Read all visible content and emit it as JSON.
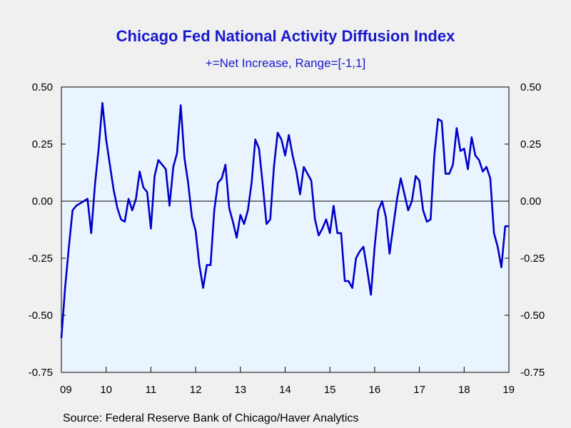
{
  "chart_data": {
    "type": "line",
    "title": "Chicago Fed National Activity Diffusion Index",
    "subtitle": "+=Net Increase, Range=[-1,1]",
    "source": "Source:  Federal Reserve Bank of Chicago/Haver Analytics",
    "ylim": [
      -0.75,
      0.5
    ],
    "y_ticks": [
      0.5,
      0.25,
      0.0,
      -0.25,
      -0.5,
      -0.75
    ],
    "y_tick_labels": [
      "0.50",
      "0.25",
      "0.00",
      "-0.25",
      "-0.50",
      "-0.75"
    ],
    "xlim": [
      2009.0,
      2019.0
    ],
    "x_tick_labels": [
      "09",
      "10",
      "11",
      "12",
      "13",
      "14",
      "15",
      "16",
      "17",
      "18",
      "19"
    ],
    "zero_line": true,
    "grid": false,
    "colors": {
      "line": "#0000c8",
      "plot_bg": "#eaf4ff",
      "title": "#1a1acd"
    },
    "series": [
      {
        "x": [
          2009.0,
          2009.083,
          2009.167,
          2009.25,
          2009.333,
          2009.417,
          2009.5,
          2009.583,
          2009.667,
          2009.75,
          2009.833,
          2009.917,
          2010.0,
          2010.083,
          2010.167,
          2010.25,
          2010.333,
          2010.417,
          2010.5,
          2010.583,
          2010.667,
          2010.75,
          2010.833,
          2010.917,
          2011.0,
          2011.083,
          2011.167,
          2011.25,
          2011.333,
          2011.417,
          2011.5,
          2011.583,
          2011.667,
          2011.75,
          2011.833,
          2011.917,
          2012.0,
          2012.083,
          2012.167,
          2012.25,
          2012.333,
          2012.417,
          2012.5,
          2012.583,
          2012.667,
          2012.75,
          2012.833,
          2012.917,
          2013.0,
          2013.083,
          2013.167,
          2013.25,
          2013.333,
          2013.417,
          2013.5,
          2013.583,
          2013.667,
          2013.75,
          2013.833,
          2013.917,
          2014.0,
          2014.083,
          2014.167,
          2014.25,
          2014.333,
          2014.417,
          2014.5,
          2014.583,
          2014.667,
          2014.75,
          2014.833,
          2014.917,
          2015.0,
          2015.083,
          2015.167,
          2015.25,
          2015.333,
          2015.417,
          2015.5,
          2015.583,
          2015.667,
          2015.75,
          2015.833,
          2015.917,
          2016.0,
          2016.083,
          2016.167,
          2016.25,
          2016.333,
          2016.417,
          2016.5,
          2016.583,
          2016.667,
          2016.75,
          2016.833,
          2016.917,
          2017.0,
          2017.083,
          2017.167,
          2017.25,
          2017.333,
          2017.417,
          2017.5,
          2017.583,
          2017.667,
          2017.75,
          2017.833,
          2017.917,
          2018.0,
          2018.083,
          2018.167,
          2018.25,
          2018.333,
          2018.417,
          2018.5,
          2018.583,
          2018.667,
          2018.75,
          2018.833,
          2018.917,
          2019.0
        ],
        "values": [
          -0.6,
          -0.38,
          -0.2,
          -0.04,
          -0.02,
          -0.01,
          0.0,
          0.01,
          -0.14,
          0.07,
          0.23,
          0.43,
          0.27,
          0.16,
          0.05,
          -0.03,
          -0.08,
          -0.09,
          0.01,
          -0.04,
          0.01,
          0.13,
          0.06,
          0.04,
          -0.12,
          0.11,
          0.18,
          0.16,
          0.14,
          -0.02,
          0.15,
          0.21,
          0.42,
          0.19,
          0.08,
          -0.07,
          -0.13,
          -0.28,
          -0.38,
          -0.28,
          -0.28,
          -0.04,
          0.08,
          0.1,
          0.16,
          -0.03,
          -0.09,
          -0.16,
          -0.06,
          -0.1,
          -0.04,
          0.08,
          0.27,
          0.23,
          0.07,
          -0.1,
          -0.08,
          0.15,
          0.3,
          0.27,
          0.2,
          0.29,
          0.2,
          0.13,
          0.03,
          0.15,
          0.12,
          0.09,
          -0.08,
          -0.15,
          -0.12,
          -0.08,
          -0.14,
          -0.02,
          -0.14,
          -0.14,
          -0.35,
          -0.35,
          -0.38,
          -0.25,
          -0.22,
          -0.2,
          -0.3,
          -0.41,
          -0.2,
          -0.04,
          0.0,
          -0.07,
          -0.23,
          -0.11,
          0.01,
          0.1,
          0.03,
          -0.04,
          0.0,
          0.11,
          0.09,
          -0.04,
          -0.09,
          -0.08,
          0.2,
          0.36,
          0.35,
          0.12,
          0.12,
          0.16,
          0.32,
          0.22,
          0.23,
          0.14,
          0.28,
          0.2,
          0.18,
          0.13,
          0.15,
          0.1,
          -0.14,
          -0.2,
          -0.29,
          -0.11,
          -0.11
        ]
      }
    ]
  }
}
